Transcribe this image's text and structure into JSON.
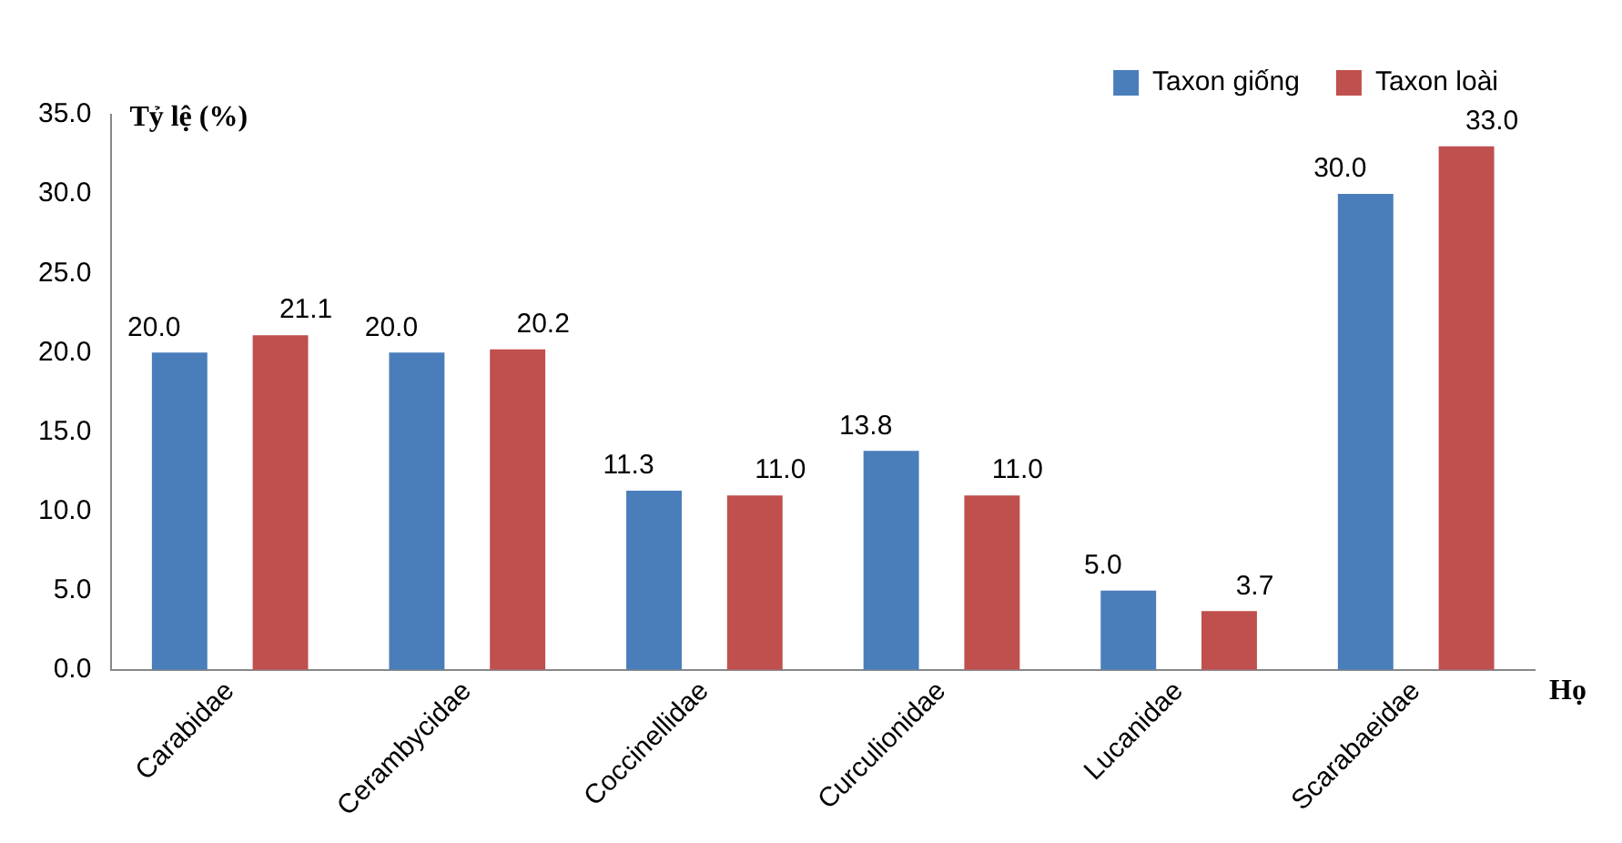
{
  "chart_data": {
    "type": "bar",
    "ylabel": "Tỷ lệ (%)",
    "xlabel": "Họ",
    "categories": [
      "Carabidae",
      "Cerambycidae",
      "Coccinellidae",
      "Curculionidae",
      "Lucanidae",
      "Scarabaeidae"
    ],
    "series": [
      {
        "name": "Taxon giống",
        "color": "#4a7ebb",
        "values": [
          20.0,
          20.0,
          11.3,
          13.8,
          5.0,
          30.0
        ],
        "value_labels": [
          "20.0",
          "20.0",
          "11.3",
          "13.8",
          "5.0",
          "30.0"
        ]
      },
      {
        "name": "Taxon loài",
        "color": "#c0504d",
        "values": [
          21.1,
          20.2,
          11.0,
          11.0,
          3.7,
          33.0
        ],
        "value_labels": [
          "21.1",
          "20.2",
          "11.0",
          "11.0",
          "3.7",
          "33.0"
        ]
      }
    ],
    "ylim": [
      0,
      35
    ],
    "yticks": [
      {
        "value": 0,
        "label": "0.0"
      },
      {
        "value": 5,
        "label": "5.0"
      },
      {
        "value": 10,
        "label": "10.0"
      },
      {
        "value": 15,
        "label": "15.0"
      },
      {
        "value": 20,
        "label": "20.0"
      },
      {
        "value": 25,
        "label": "25.0"
      },
      {
        "value": 30,
        "label": "30.0"
      },
      {
        "value": 35,
        "label": "35.0"
      }
    ],
    "legend": "top right"
  }
}
